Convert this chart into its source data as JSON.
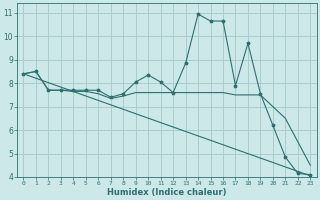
{
  "xlabel": "Humidex (Indice chaleur)",
  "background_color": "#cce8e8",
  "grid_color": "#aacccc",
  "line_color": "#2d7070",
  "xlim": [
    -0.5,
    23.5
  ],
  "ylim": [
    4,
    11.4
  ],
  "xticks": [
    0,
    1,
    2,
    3,
    4,
    5,
    6,
    7,
    8,
    9,
    10,
    11,
    12,
    13,
    14,
    15,
    16,
    17,
    18,
    19,
    20,
    21,
    22,
    23
  ],
  "yticks": [
    4,
    5,
    6,
    7,
    8,
    9,
    10,
    11
  ],
  "line1_x": [
    0,
    1,
    2,
    3,
    4,
    5,
    6,
    7,
    8,
    9,
    10,
    11,
    12,
    13,
    14,
    15,
    16,
    17,
    18,
    19,
    20,
    21,
    22,
    23
  ],
  "line1_y": [
    8.4,
    8.5,
    7.7,
    7.7,
    7.7,
    7.7,
    7.7,
    7.4,
    7.55,
    8.05,
    8.35,
    8.05,
    7.6,
    8.85,
    10.95,
    10.65,
    10.65,
    7.9,
    9.7,
    7.55,
    6.2,
    4.85,
    4.15,
    4.1
  ],
  "line2_x": [
    0,
    1,
    2,
    3,
    4,
    5,
    6,
    7,
    8,
    9,
    10,
    11,
    12,
    13,
    14,
    15,
    16,
    17,
    18,
    19,
    20,
    21,
    22,
    23
  ],
  "line2_y": [
    8.4,
    8.5,
    7.7,
    7.7,
    7.65,
    7.65,
    7.55,
    7.35,
    7.45,
    7.6,
    7.6,
    7.6,
    7.6,
    7.6,
    7.6,
    7.6,
    7.6,
    7.5,
    7.5,
    7.5,
    7.0,
    6.5,
    5.5,
    4.5
  ],
  "line3_x": [
    0,
    23
  ],
  "line3_y": [
    8.4,
    4.05
  ],
  "xlabel_fontsize": 6.0,
  "tick_fontsize_x": 4.5,
  "tick_fontsize_y": 5.5
}
